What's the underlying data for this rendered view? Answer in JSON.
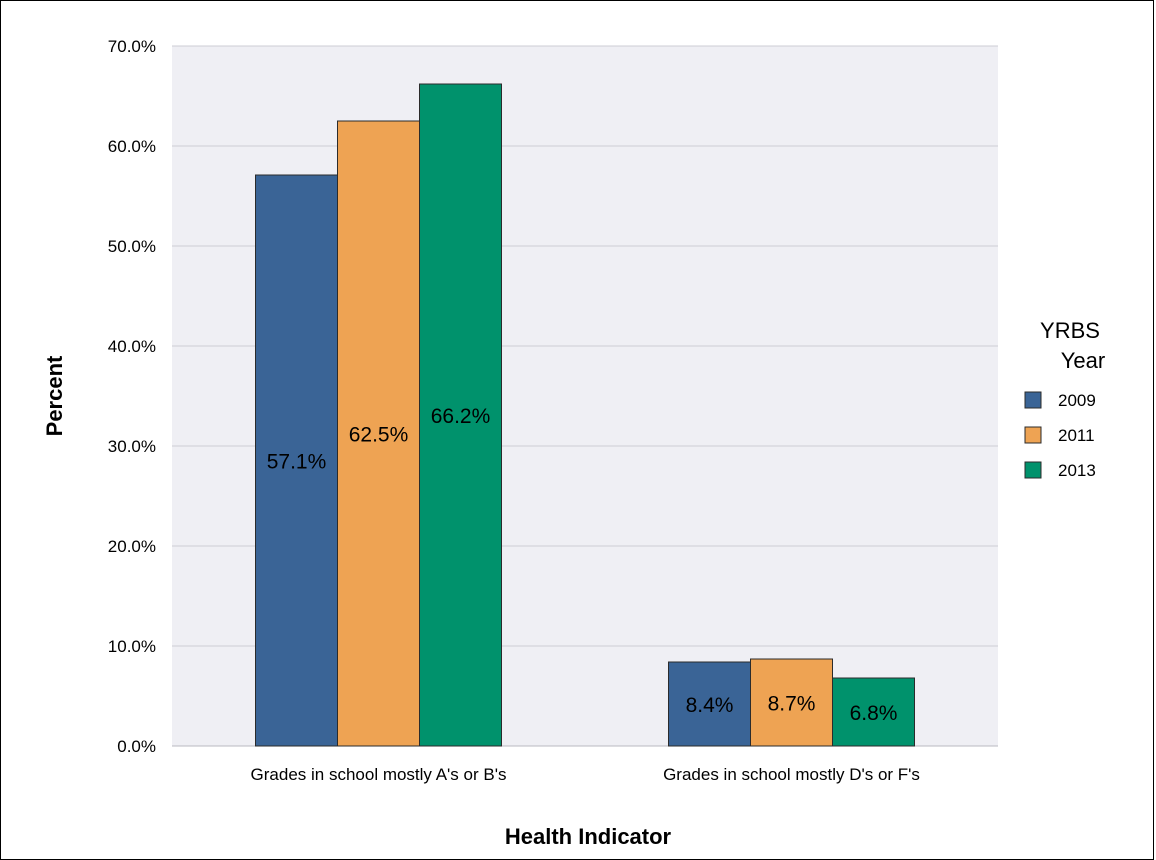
{
  "chart_data": {
    "type": "bar",
    "categories": [
      "Grades in school mostly A's or B's",
      "Grades in school mostly D's or F's"
    ],
    "series": [
      {
        "name": "2009",
        "values": [
          57.1,
          8.4
        ],
        "labels": [
          "57.1%",
          "8.4%"
        ],
        "color": "#3a6496"
      },
      {
        "name": "2011",
        "values": [
          62.5,
          8.7
        ],
        "labels": [
          "62.5%",
          "8.7%"
        ],
        "color": "#eea353"
      },
      {
        "name": "2013",
        "values": [
          66.2,
          6.8
        ],
        "labels": [
          "66.2%",
          "6.8%"
        ],
        "color": "#00926c"
      }
    ],
    "xlabel": "Health Indicator",
    "ylabel": "Percent",
    "ylim": [
      0,
      70
    ],
    "yticks": [
      "0.0%",
      "10.0%",
      "20.0%",
      "30.0%",
      "40.0%",
      "50.0%",
      "60.0%",
      "70.0%"
    ],
    "legend_title": [
      "YRBS",
      "Year"
    ],
    "legend_position": "right",
    "grid": true,
    "plot_background": "#efeff4"
  }
}
